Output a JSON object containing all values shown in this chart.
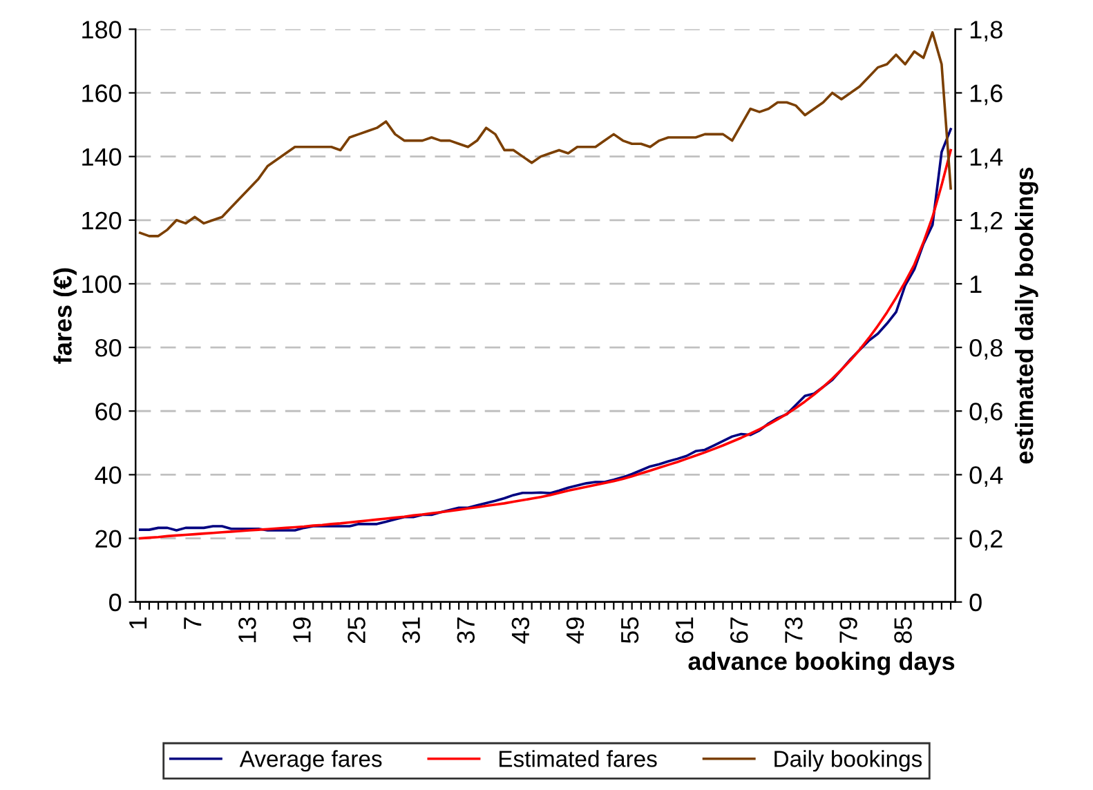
{
  "chart_data": {
    "type": "line",
    "xlabel": "advance booking days",
    "ylabel": "fares (€)",
    "y2label": "estimated daily bookings",
    "categories": [
      "1",
      null,
      null,
      null,
      null,
      null,
      "7",
      null,
      null,
      null,
      null,
      null,
      "13",
      null,
      null,
      null,
      null,
      null,
      "19",
      null,
      null,
      null,
      null,
      null,
      "25",
      null,
      null,
      null,
      null,
      null,
      "31",
      null,
      null,
      null,
      null,
      null,
      "37",
      null,
      null,
      null,
      null,
      null,
      "43",
      null,
      null,
      null,
      null,
      null,
      "49",
      null,
      null,
      null,
      null,
      null,
      "55",
      null,
      null,
      null,
      null,
      null,
      "61",
      null,
      null,
      null,
      null,
      null,
      "67",
      null,
      null,
      null,
      null,
      null,
      "73",
      null,
      null,
      null,
      null,
      null,
      "79",
      null,
      null,
      null,
      null,
      null,
      "85",
      null,
      null,
      null,
      null,
      null
    ],
    "series": [
      {
        "name": "Average fares",
        "color": "#000080",
        "values": [
          22.7,
          22.7,
          23.3,
          23.3,
          22.5,
          23.3,
          23.3,
          23.3,
          23.8,
          23.8,
          23.0,
          23.0,
          23.0,
          23.0,
          22.5,
          22.5,
          22.5,
          22.5,
          23.3,
          23.8,
          23.8,
          23.8,
          23.8,
          23.8,
          24.5,
          24.5,
          24.5,
          25.2,
          26.0,
          26.7,
          26.7,
          27.4,
          27.4,
          28.2,
          28.9,
          29.6,
          29.6,
          30.4,
          31.1,
          31.8,
          32.6,
          33.6,
          34.3,
          34.3,
          34.4,
          34.2,
          35.0,
          35.9,
          36.6,
          37.3,
          37.7,
          37.7,
          38.4,
          39.2,
          40.2,
          41.4,
          42.6,
          43.3,
          44.2,
          45.0,
          45.9,
          47.4,
          47.8,
          49.2,
          50.6,
          52.0,
          52.8,
          52.5,
          53.9,
          56.1,
          57.8,
          59.0,
          61.9,
          64.8,
          65.5,
          67.6,
          69.8,
          73.0,
          76.3,
          79.2,
          82.1,
          84.3,
          87.5,
          91.1,
          99.5,
          104.5,
          112.5,
          118.5,
          141.4,
          148.6
        ]
      },
      {
        "name": "Estimated fares",
        "color": "#ff0000",
        "values": [
          20.0,
          20.2,
          20.4,
          20.7,
          20.9,
          21.1,
          21.3,
          21.5,
          21.7,
          21.9,
          22.1,
          22.3,
          22.5,
          22.7,
          22.9,
          23.1,
          23.3,
          23.5,
          23.7,
          24.0,
          24.2,
          24.5,
          24.7,
          25.0,
          25.3,
          25.6,
          25.9,
          26.2,
          26.5,
          26.8,
          27.2,
          27.5,
          27.9,
          28.2,
          28.6,
          29.0,
          29.4,
          29.8,
          30.2,
          30.6,
          31.0,
          31.5,
          32.0,
          32.5,
          33.0,
          33.6,
          34.3,
          35.0,
          35.6,
          36.2,
          36.8,
          37.4,
          38.0,
          38.7,
          39.5,
          40.4,
          41.3,
          42.2,
          43.1,
          44.0,
          45.0,
          46.0,
          47.0,
          48.1,
          49.2,
          50.4,
          51.6,
          52.9,
          54.3,
          55.8,
          57.4,
          59.1,
          61.0,
          63.0,
          65.2,
          67.6,
          70.2,
          73.0,
          76.0,
          79.3,
          82.9,
          86.8,
          91.0,
          95.6,
          100.6,
          106.0,
          113.0,
          121.0,
          131.0,
          142.0
        ]
      },
      {
        "name": "Daily bookings",
        "color": "#7b3f00",
        "axis": "y2",
        "values": [
          1.16,
          1.15,
          1.15,
          1.17,
          1.2,
          1.19,
          1.21,
          1.19,
          1.2,
          1.21,
          1.24,
          1.27,
          1.3,
          1.33,
          1.37,
          1.39,
          1.41,
          1.43,
          1.43,
          1.43,
          1.43,
          1.43,
          1.42,
          1.46,
          1.47,
          1.48,
          1.49,
          1.51,
          1.47,
          1.45,
          1.45,
          1.45,
          1.46,
          1.45,
          1.45,
          1.44,
          1.43,
          1.45,
          1.49,
          1.47,
          1.42,
          1.42,
          1.4,
          1.38,
          1.4,
          1.41,
          1.42,
          1.41,
          1.43,
          1.43,
          1.43,
          1.45,
          1.47,
          1.45,
          1.44,
          1.44,
          1.43,
          1.45,
          1.46,
          1.46,
          1.46,
          1.46,
          1.47,
          1.47,
          1.47,
          1.45,
          1.5,
          1.55,
          1.54,
          1.55,
          1.57,
          1.57,
          1.56,
          1.53,
          1.55,
          1.57,
          1.6,
          1.58,
          1.6,
          1.62,
          1.65,
          1.68,
          1.69,
          1.72,
          1.69,
          1.73,
          1.71,
          1.79,
          1.69,
          1.3
        ]
      }
    ],
    "ylim": [
      0,
      180
    ],
    "yticks": [
      0,
      20,
      40,
      60,
      80,
      100,
      120,
      140,
      160,
      180
    ],
    "y2lim": [
      0,
      1.8
    ],
    "y2ticks": [
      0,
      {
        "value": 0.2,
        "label": "0,2"
      },
      {
        "value": 0.4,
        "label": "0,4"
      },
      {
        "value": 0.6,
        "label": "0,6"
      },
      {
        "value": 0.8,
        "label": "0,8"
      },
      1,
      {
        "value": 1.2,
        "label": "1,2"
      },
      {
        "value": 1.4,
        "label": "1,4"
      },
      {
        "value": 1.6,
        "label": "1,6"
      },
      {
        "value": 1.8,
        "label": "1,8"
      }
    ],
    "grid": "y",
    "legend": "bottom",
    "marker": "none",
    "line_style": "solid"
  }
}
